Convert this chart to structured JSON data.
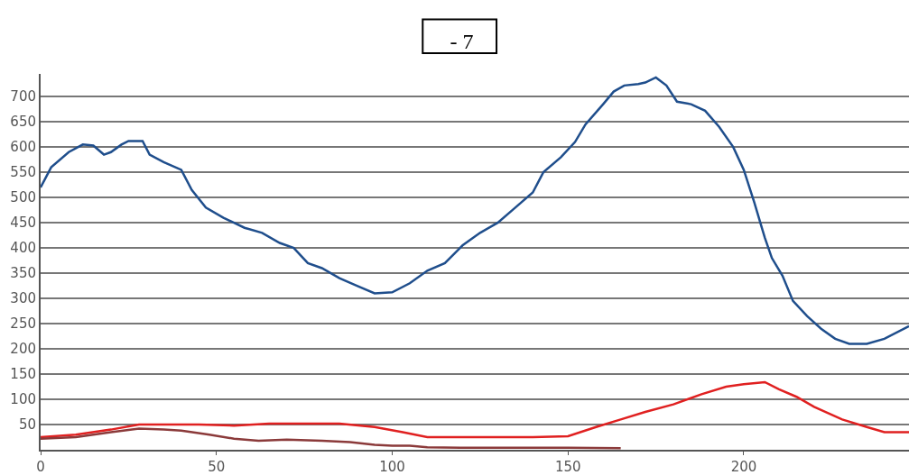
{
  "chart_data": {
    "type": "line",
    "title": "- 7",
    "xlim": [
      0,
      247
    ],
    "ylim": [
      0,
      745
    ],
    "xticks": [
      0,
      50,
      100,
      150,
      200
    ],
    "yticks": [
      50,
      100,
      150,
      200,
      250,
      300,
      350,
      400,
      450,
      500,
      550,
      600,
      650,
      700
    ],
    "grid": "y",
    "marker": "none",
    "line_style": "solid",
    "series": [
      {
        "color": "#1f4e8c",
        "x": [
          0,
          3,
          8,
          12,
          15,
          18,
          20,
          23,
          25,
          29,
          31,
          35,
          40,
          43,
          47,
          52,
          58,
          63,
          68,
          72,
          76,
          80,
          85,
          90,
          95,
          100,
          105,
          110,
          115,
          120,
          125,
          130,
          135,
          140,
          143,
          148,
          152,
          155,
          160,
          163,
          166,
          170,
          172,
          175,
          178,
          181,
          185,
          189,
          193,
          197,
          200,
          203,
          206,
          208,
          211,
          214,
          218,
          222,
          226,
          230,
          235,
          240,
          247
        ],
        "values": [
          520,
          560,
          590,
          605,
          603,
          585,
          590,
          605,
          612,
          612,
          585,
          570,
          555,
          515,
          480,
          460,
          440,
          430,
          410,
          400,
          370,
          360,
          340,
          325,
          310,
          312,
          330,
          355,
          370,
          405,
          430,
          450,
          480,
          510,
          550,
          580,
          610,
          645,
          685,
          710,
          722,
          725,
          728,
          738,
          722,
          690,
          685,
          672,
          640,
          600,
          555,
          490,
          420,
          380,
          345,
          295,
          265,
          240,
          220,
          210,
          210,
          220,
          245
        ]
      },
      {
        "color": "#e02020",
        "x": [
          0,
          10,
          20,
          28,
          35,
          45,
          55,
          65,
          75,
          85,
          95,
          103,
          110,
          120,
          130,
          140,
          150,
          158,
          165,
          172,
          180,
          188,
          195,
          200,
          206,
          210,
          215,
          220,
          228,
          235,
          240,
          247
        ],
        "values": [
          25,
          30,
          40,
          50,
          50,
          50,
          48,
          52,
          52,
          52,
          45,
          35,
          25,
          25,
          25,
          25,
          27,
          45,
          60,
          75,
          90,
          110,
          125,
          130,
          134,
          120,
          105,
          85,
          60,
          45,
          35,
          35
        ]
      },
      {
        "color": "#8b3a3a",
        "x": [
          0,
          10,
          20,
          28,
          35,
          40,
          48,
          55,
          62,
          70,
          80,
          88,
          95,
          100,
          105,
          110,
          120,
          130,
          140,
          150,
          165
        ],
        "values": [
          22,
          25,
          35,
          42,
          40,
          38,
          30,
          22,
          18,
          20,
          18,
          15,
          10,
          8,
          8,
          5,
          4,
          4,
          4,
          4,
          3
        ]
      }
    ]
  }
}
